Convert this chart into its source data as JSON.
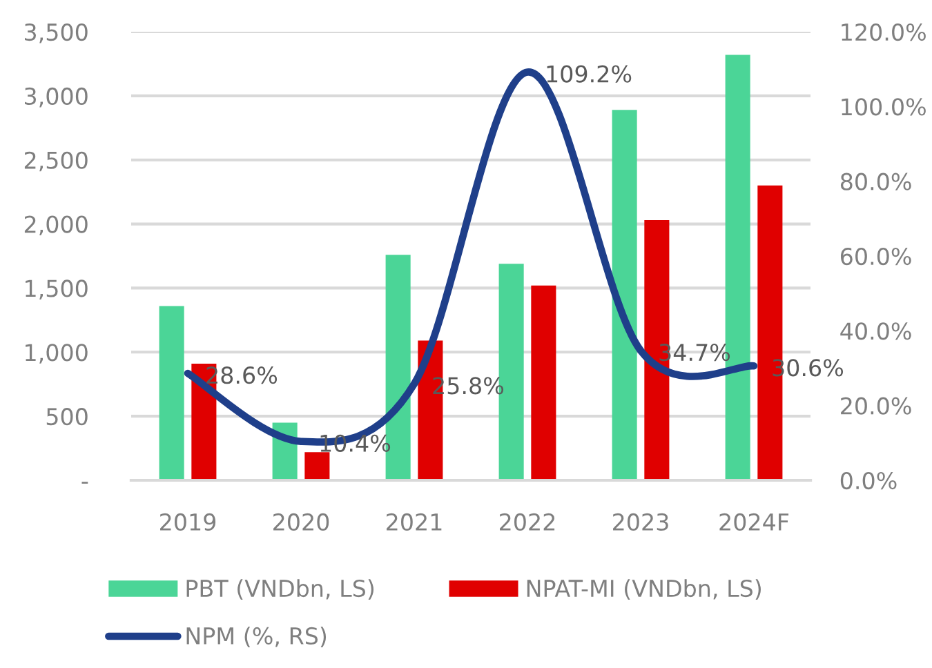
{
  "chart_data": {
    "type": "bar",
    "categories": [
      "2019",
      "2020",
      "2021",
      "2022",
      "2023",
      "2024F"
    ],
    "series": [
      {
        "name": "PBT (VNDbn, LS)",
        "color": "#4bd597",
        "values": [
          1360,
          450,
          1760,
          1690,
          2890,
          3320
        ]
      },
      {
        "name": "NPAT-MI (VNDbn, LS)",
        "color": "#e00000",
        "values": [
          910,
          220,
          1090,
          1520,
          2030,
          2300
        ]
      },
      {
        "name": "NPM (%, RS)",
        "type": "line",
        "axis": "y2",
        "color": "#1f3f8a",
        "values": [
          28.6,
          10.4,
          25.8,
          109.2,
          34.7,
          30.6
        ],
        "value_labels": [
          "28.6%",
          "10.4%",
          "25.8%",
          "109.2%",
          "34.7%",
          "30.6%"
        ]
      }
    ],
    "ylim": [
      0,
      3500
    ],
    "yticks": [
      {
        "value": 0,
        "label": "-"
      },
      500,
      {
        "value": 1000,
        "label": "1,000"
      },
      {
        "value": 1500,
        "label": "1,500"
      },
      {
        "value": 2000,
        "label": "2,000"
      },
      {
        "value": 2500,
        "label": "2,500"
      },
      {
        "value": 3000,
        "label": "3,000"
      },
      {
        "value": 3500,
        "label": "3,500"
      }
    ],
    "y2lim": [
      0,
      120
    ],
    "y2ticks": [
      {
        "value": 0,
        "label": "0.0%"
      },
      {
        "value": 20,
        "label": "20.0%"
      },
      {
        "value": 40,
        "label": "40.0%"
      },
      {
        "value": 60,
        "label": "60.0%"
      },
      {
        "value": 80,
        "label": "80.0%"
      },
      {
        "value": 100,
        "label": "100.0%"
      },
      {
        "value": 120,
        "label": "120.0%"
      }
    ],
    "grid": "y",
    "legend": "bottom"
  }
}
